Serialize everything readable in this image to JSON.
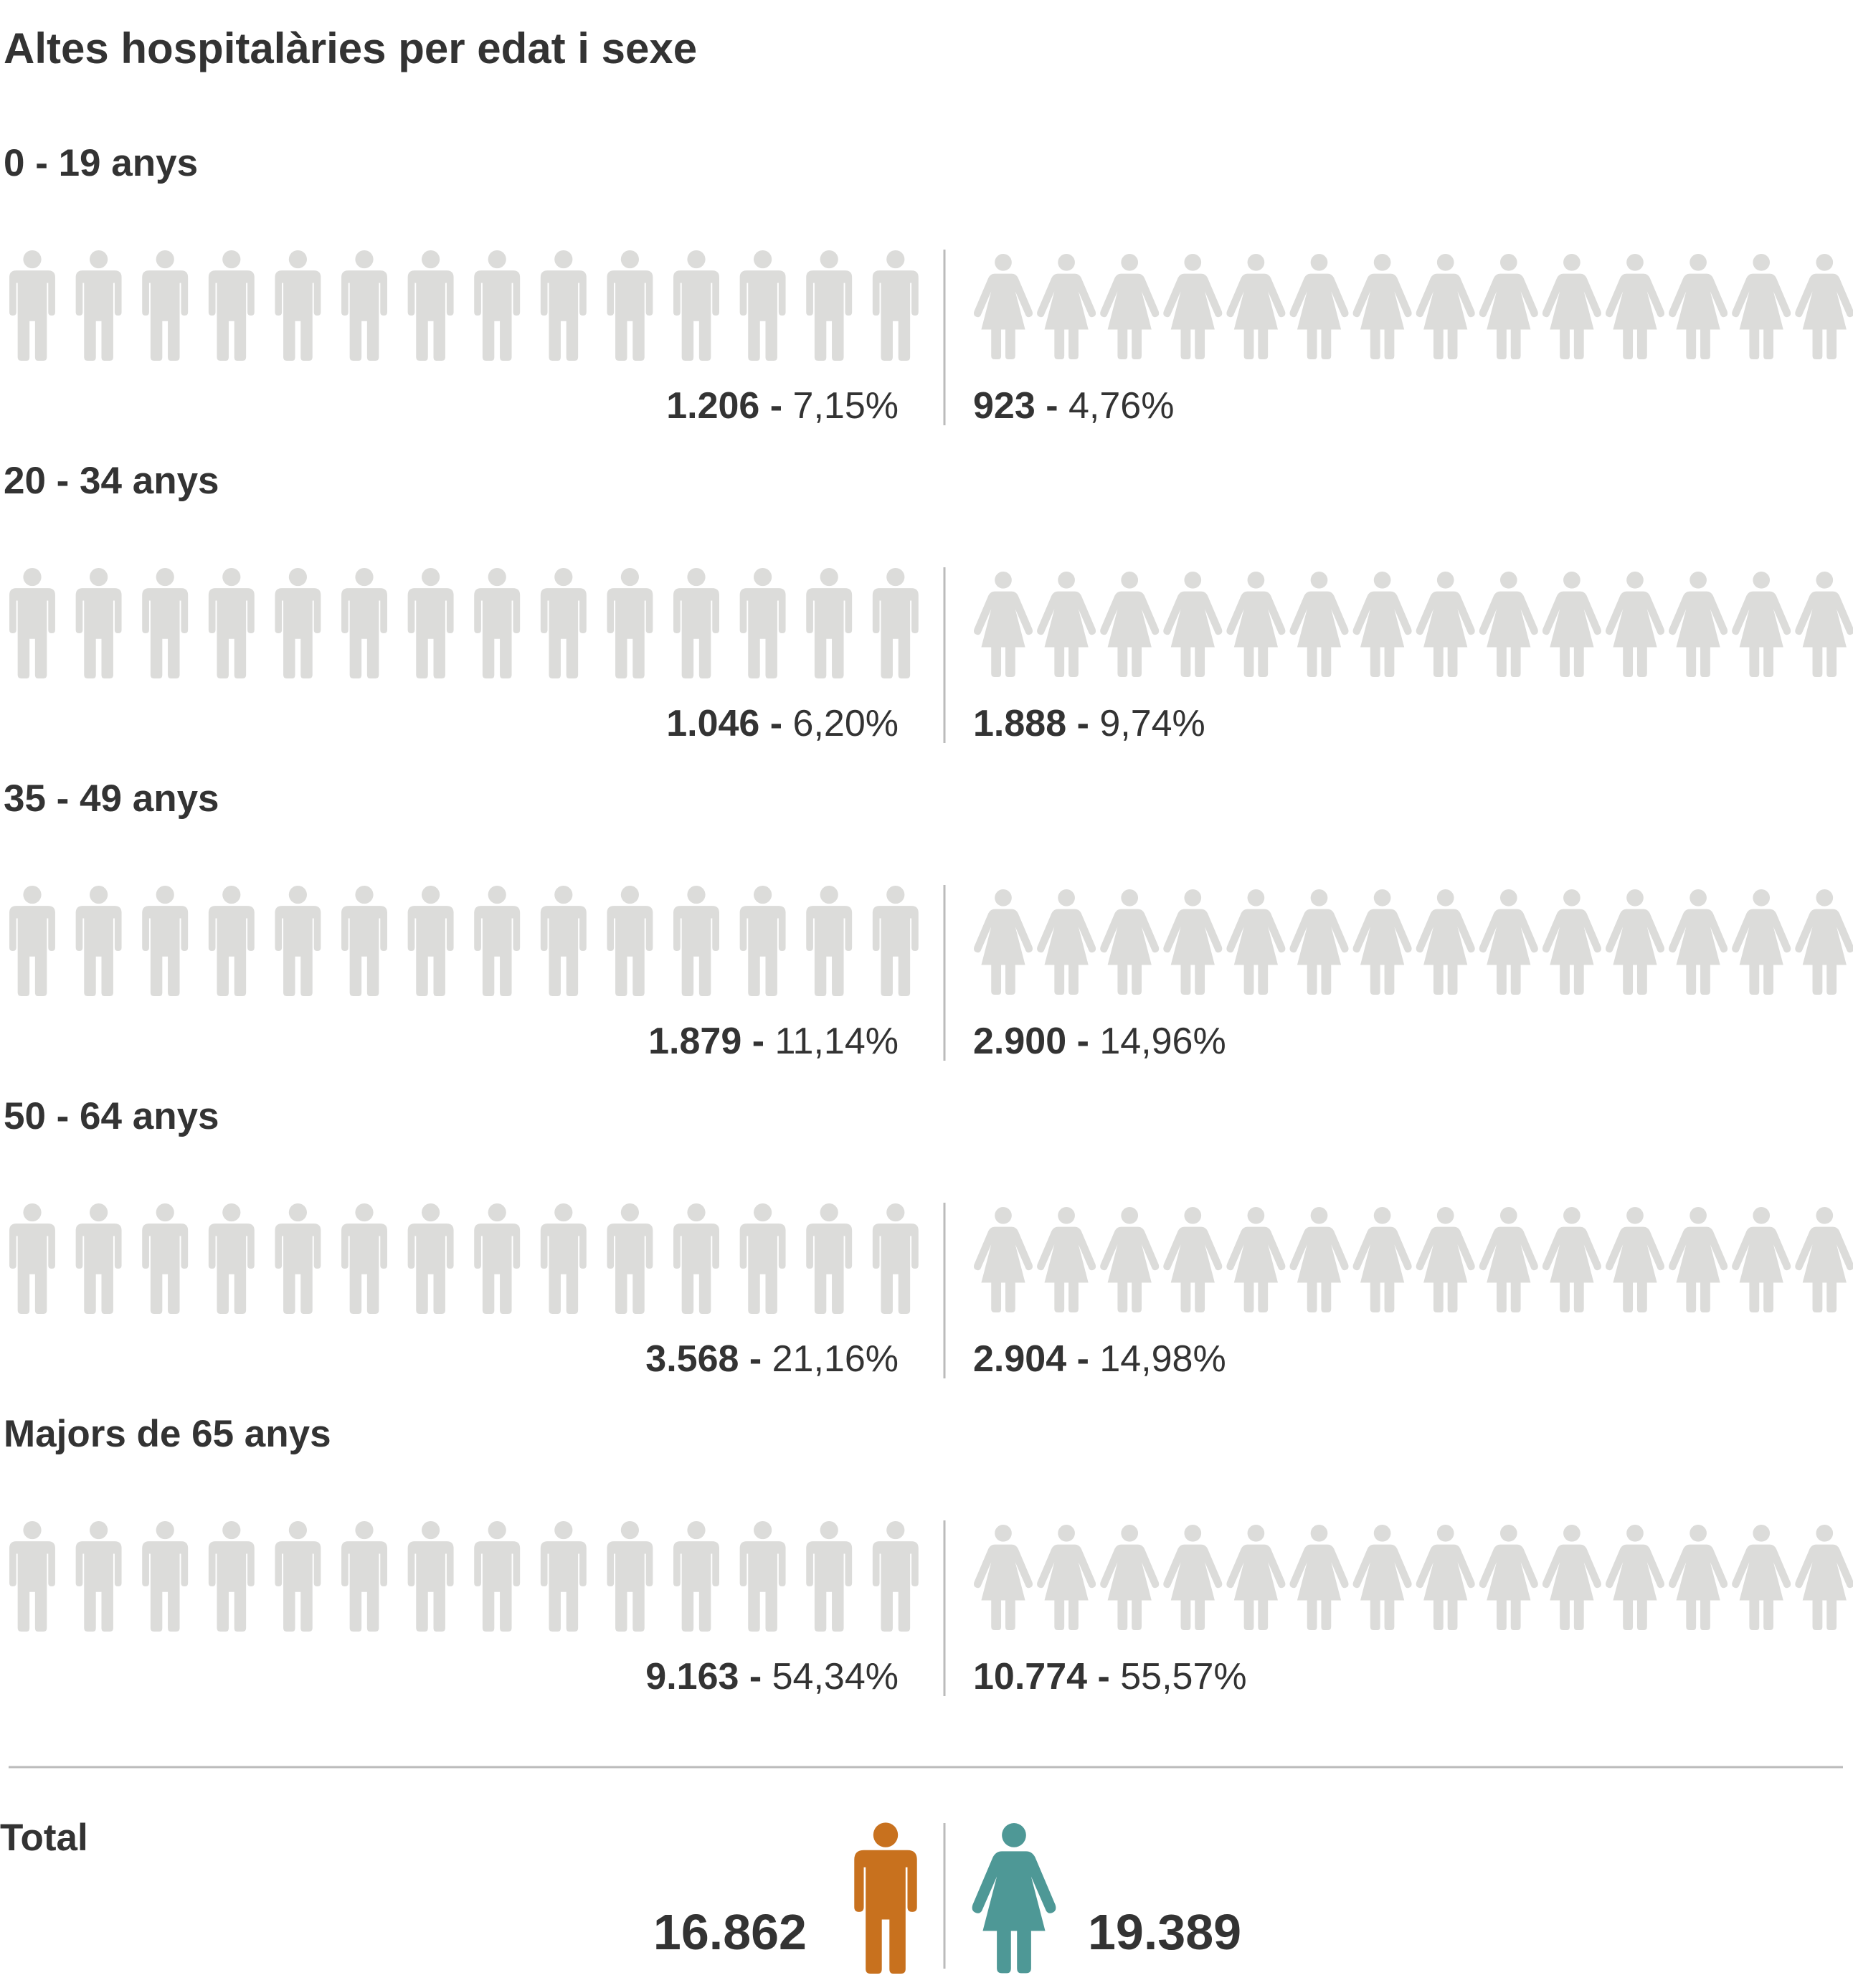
{
  "chart_data": {
    "type": "pictogram",
    "title": "Altes hospitalàries per edat i sexe",
    "icon_scale_percent_per_icon": 4,
    "icons_per_side": 14,
    "colors": {
      "male": "#C8711E",
      "female": "#4E9896",
      "empty": "#DCDCDA",
      "divider": "#BBBBBB"
    },
    "groups": [
      {
        "label": "0 - 19 anys",
        "male_count": "1.206",
        "male_percent": 7.15,
        "male_percent_label": "7,15%",
        "female_count": "923",
        "female_percent": 4.76,
        "female_percent_label": "4,76%"
      },
      {
        "label": "20 - 34 anys",
        "male_count": "1.046",
        "male_percent": 6.2,
        "male_percent_label": "6,20%",
        "female_count": "1.888",
        "female_percent": 9.74,
        "female_percent_label": "9,74%"
      },
      {
        "label": "35 - 49 anys",
        "male_count": "1.879",
        "male_percent": 11.14,
        "male_percent_label": "11,14%",
        "female_count": "2.900",
        "female_percent": 14.96,
        "female_percent_label": "14,96%"
      },
      {
        "label": "50 - 64 anys",
        "male_count": "3.568",
        "male_percent": 21.16,
        "male_percent_label": "21,16%",
        "female_count": "2.904",
        "female_percent": 14.98,
        "female_percent_label": "14,98%"
      },
      {
        "label": "Majors de 65 anys",
        "male_count": "9.163",
        "male_percent": 54.34,
        "male_percent_label": "54,34%",
        "female_count": "10.774",
        "female_percent": 55.57,
        "female_percent_label": "55,57%"
      }
    ],
    "total": {
      "label": "Total",
      "male_count": "16.862",
      "female_count": "19.389"
    }
  }
}
